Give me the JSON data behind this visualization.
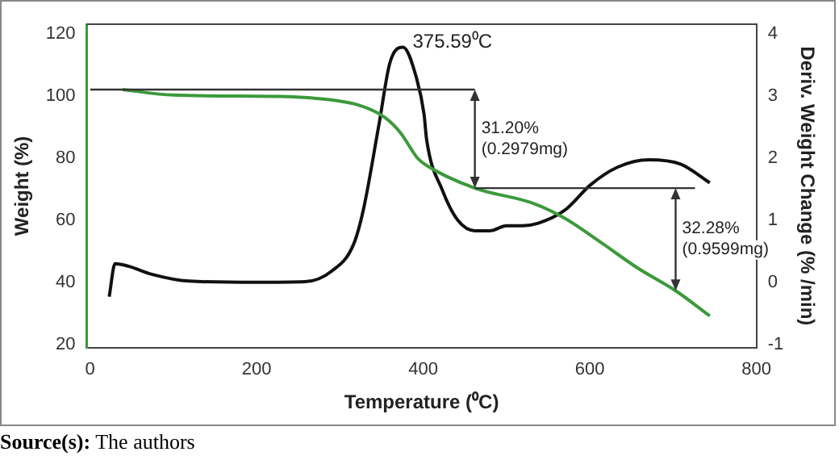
{
  "chart_data": {
    "type": "line",
    "xlabel": "Temperature (⁰C)",
    "ylabel": "Weight (%)",
    "y2label": "Deriv. Weight Change (% /min)",
    "xlim": [
      -4,
      800
    ],
    "xticks": [
      0,
      200,
      400,
      600,
      800
    ],
    "ylim": [
      19,
      123
    ],
    "yticks": [
      20,
      40,
      60,
      80,
      100,
      120
    ],
    "y2lim": [
      -1.05,
      4.15
    ],
    "y2ticks": [
      -1,
      0,
      1,
      2,
      3,
      4
    ],
    "grid": false,
    "legend": false,
    "marker": "none",
    "line_style": "solid",
    "series": [
      {
        "color": "#3b9a3b",
        "axis": "y",
        "x": [
          39,
          100,
          227,
          265,
          322,
          354,
          373,
          393,
          404,
          462,
          531,
          570,
          614,
          658,
          703,
          744
        ],
        "values": [
          102,
          100.2,
          99.8,
          99.3,
          97,
          93,
          88,
          80,
          77.6,
          70.3,
          65.5,
          60.6,
          52.7,
          44.5,
          37.3,
          29.2
        ]
      },
      {
        "color": "#111111",
        "axis": "y2",
        "x": [
          23,
          30,
          46,
          74,
          119,
          200,
          258,
          290,
          316,
          328,
          347,
          360,
          375.59,
          392,
          401,
          404,
          423,
          442,
          462,
          480,
          500,
          519,
          538,
          570,
          601,
          633,
          671,
          709,
          744
        ],
        "values": [
          -0.23,
          0.3,
          0.26,
          0.13,
          0.02,
          0,
          0.01,
          0.18,
          0.6,
          1.16,
          2.55,
          3.53,
          3.78,
          3.28,
          2.7,
          2.3,
          1.48,
          0.99,
          0.83,
          0.83,
          0.91,
          0.91,
          0.95,
          1.16,
          1.57,
          1.85,
          1.97,
          1.9,
          1.6
        ]
      }
    ],
    "annotations": [
      {
        "text": "375.59⁰C",
        "x": 375.59,
        "y": 115.6
      },
      {
        "text": "31.20%\n(0.2979mg)",
        "x": 462,
        "y": 70.3
      },
      {
        "text": "32.28%\n(0.9599mg)",
        "x": 703,
        "y": 37.3
      },
      "Source(s): The authors"
    ]
  }
}
